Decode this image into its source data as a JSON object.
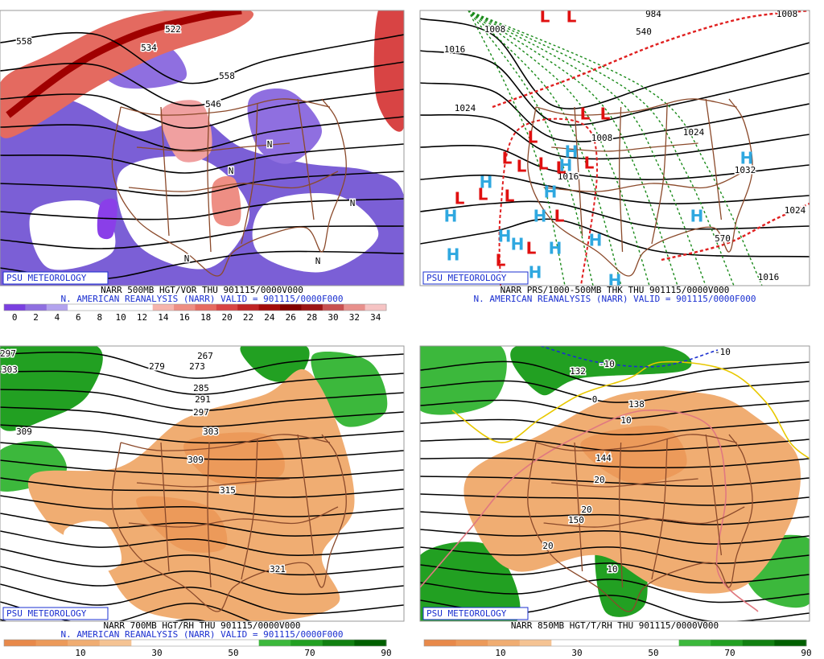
{
  "panels": [
    {
      "badge": "PSU METEOROLOGY",
      "caption": "NARR 500MB HGT/VOR THU 901115/0000V000",
      "subcaption": "N. AMERICAN REANALYSIS (NARR) VALID = 901115/0000F000",
      "contour_labels": [
        "558",
        "558",
        "522",
        "534",
        "546",
        "N",
        "N",
        "N",
        "N",
        "N"
      ],
      "colorbar": {
        "labels": [
          0,
          2,
          4,
          6,
          8,
          10,
          12,
          14,
          16,
          18,
          20,
          22,
          24,
          26,
          28,
          30,
          32,
          34
        ],
        "colors": [
          "#7a3fe0",
          "#8f6fe0",
          "#b3a3ee",
          "#ffffff",
          "#ffffff",
          "#ffffff",
          "#ffffff",
          "#f6b4ac",
          "#ee8e84",
          "#e66a60",
          "#d84444",
          "#bf2424",
          "#a30a0a",
          "#820000",
          "#9c1414",
          "#c85050",
          "#e8908c",
          "#f6c4c4"
        ]
      }
    },
    {
      "badge": "PSU METEOROLOGY",
      "caption": "NARR PRS/1000-500MB THK THU 901115/0000V000",
      "subcaption": "N. AMERICAN REANALYSIS (NARR) VALID = 901115/0000F000",
      "contour_labels": [
        "1008",
        "1016",
        "1024",
        "1008",
        "1016",
        "1024",
        "1032",
        "1024",
        "1016",
        "984",
        "1008",
        "570",
        "540"
      ],
      "pressure_centers": [
        "L",
        "L",
        "L",
        "L",
        "L",
        "L",
        "L",
        "L",
        "L",
        "L",
        "L",
        "L",
        "L",
        "L",
        "L",
        "L",
        "H",
        "H",
        "H",
        "H",
        "H",
        "H",
        "H",
        "H",
        "H",
        "H",
        "H",
        "H",
        "H",
        "H",
        "H"
      ]
    },
    {
      "badge": "PSU METEOROLOGY",
      "caption": "NARR 700MB HGT/RH THU 901115/0000V000",
      "subcaption": "N. AMERICAN REANALYSIS (NARR) VALID = 901115/0000F000",
      "contour_labels": [
        "297",
        "303",
        "279",
        "273",
        "267",
        "285",
        "291",
        "297",
        "303",
        "309",
        "315",
        "321",
        "309"
      ],
      "colorbar": {
        "labels": [
          10,
          30,
          50,
          70,
          90
        ],
        "colors": [
          "#e8894a",
          "#ec9a5a",
          "#f0ad72",
          "#f5c393",
          "#ffffff",
          "#ffffff",
          "#ffffff",
          "#ffffff",
          "#3cb83c",
          "#22a022",
          "#108010",
          "#006000"
        ]
      }
    },
    {
      "badge": "PSU METEOROLOGY",
      "caption": "NARR 850MB HGT/T/RH THU 901115/0000V000",
      "contour_labels": [
        "132",
        "138",
        "144",
        "150",
        "-10",
        "-10",
        "10",
        "20",
        "20",
        "20",
        "10",
        "0"
      ],
      "colorbar": {
        "labels": [
          10,
          30,
          50,
          70,
          90
        ],
        "colors": [
          "#e8894a",
          "#ec9a5a",
          "#f0ad72",
          "#f5c393",
          "#ffffff",
          "#ffffff",
          "#ffffff",
          "#ffffff",
          "#3cb83c",
          "#22a022",
          "#108010",
          "#006000"
        ]
      }
    }
  ]
}
